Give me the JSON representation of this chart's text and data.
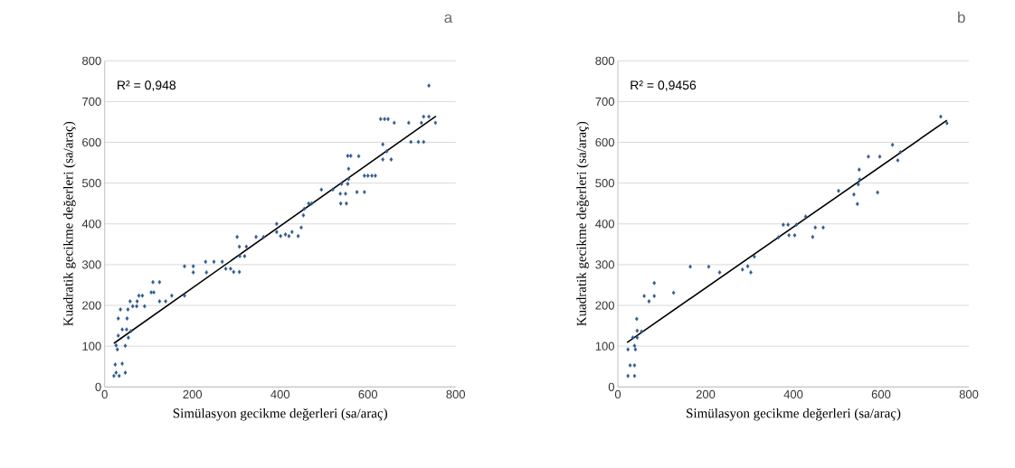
{
  "chart_data": [
    {
      "type": "scatter",
      "title": "a",
      "xlabel": "Simülasyon gecikme değerleri (sa/araç)",
      "ylabel": "Kuadratik gecikme değerleri (sa/araç)",
      "xlim": [
        0,
        800
      ],
      "ylim": [
        0,
        800
      ],
      "xticks": [
        0,
        200,
        400,
        600,
        800
      ],
      "yticks": [
        0,
        100,
        200,
        300,
        400,
        500,
        600,
        700,
        800
      ],
      "grid": "y",
      "marker": "diamond",
      "annotations": [
        "R² = 0,948"
      ],
      "series": [
        {
          "color": "#2f5b8f",
          "x": [
            21,
            33,
            47,
            26,
            24,
            40,
            29,
            47,
            26,
            31,
            40,
            50,
            54,
            60,
            31,
            51,
            36,
            53,
            64,
            73,
            58,
            74,
            78,
            86,
            91,
            106,
            112,
            110,
            125,
            125,
            139,
            153,
            182,
            182,
            202,
            202,
            232,
            230,
            249,
            268,
            276,
            287,
            294,
            307,
            302,
            307,
            323,
            308,
            319,
            345,
            362,
            392,
            392,
            401,
            412,
            420,
            427,
            441,
            448,
            453,
            455,
            465,
            472,
            494,
            520,
            537,
            549,
            538,
            551,
            540,
            554,
            556,
            556,
            554,
            561,
            579,
            575,
            592,
            592,
            600,
            609,
            617,
            629,
            638,
            646,
            660,
            634,
            634,
            643,
            653,
            693,
            698,
            715,
            727,
            722,
            727,
            739,
            739,
            754
          ],
          "values": [
            27,
            27,
            35,
            35,
            55,
            57,
            92,
            101,
            102,
            126,
            141,
            141,
            121,
            137,
            168,
            168,
            190,
            190,
            198,
            198,
            210,
            210,
            224,
            224,
            198,
            232,
            232,
            257,
            257,
            210,
            210,
            224,
            224,
            296,
            296,
            281,
            281,
            307,
            307,
            307,
            290,
            290,
            282,
            282,
            368,
            344,
            344,
            321,
            321,
            368,
            368,
            400,
            380,
            370,
            374,
            370,
            380,
            370,
            391,
            421,
            437,
            450,
            450,
            484,
            484,
            474,
            474,
            450,
            450,
            498,
            498,
            510,
            535,
            567,
            567,
            566,
            478,
            478,
            518,
            518,
            518,
            518,
            657,
            657,
            657,
            648,
            595,
            558,
            578,
            558,
            648,
            601,
            601,
            601,
            648,
            663,
            663,
            739,
            648
          ]
        },
        {
          "type": "line",
          "marker": "none",
          "color": "#000000",
          "x": [
            21,
            755
          ],
          "values": [
            107,
            664
          ]
        }
      ]
    },
    {
      "type": "scatter",
      "title": "b",
      "xlabel": "Simülasyon gecikme değerleri (sa/araç)",
      "ylabel": "Kuadratik gecikme değerleri (sa/araç)",
      "xlim": [
        0,
        800
      ],
      "ylim": [
        0,
        800
      ],
      "xticks": [
        0,
        200,
        400,
        600,
        800
      ],
      "yticks": [
        0,
        100,
        200,
        300,
        400,
        500,
        600,
        700,
        800
      ],
      "grid": "y",
      "marker": "diamond",
      "annotations": [
        "R² = 0,9456"
      ],
      "series": [
        {
          "color": "#2f5b8f",
          "x": [
            23,
            38,
            28,
            38,
            23,
            40,
            38,
            34,
            44,
            44,
            54,
            43,
            60,
            71,
            83,
            83,
            127,
            165,
            207,
            232,
            284,
            296,
            303,
            311,
            366,
            377,
            388,
            390,
            403,
            407,
            428,
            444,
            450,
            468,
            503,
            538,
            546,
            548,
            551,
            550,
            571,
            592,
            597,
            626,
            638,
            644,
            736,
            750
          ],
          "values": [
            27,
            27,
            53,
            53,
            92,
            92,
            101,
            121,
            121,
            138,
            136,
            167,
            223,
            210,
            223,
            255,
            231,
            295,
            295,
            281,
            288,
            296,
            281,
            320,
            367,
            398,
            398,
            372,
            372,
            398,
            418,
            368,
            391,
            391,
            481,
            472,
            449,
            497,
            509,
            533,
            565,
            477,
            565,
            594,
            556,
            576,
            663,
            647
          ]
        },
        {
          "type": "line",
          "marker": "none",
          "color": "#000000",
          "x": [
            21,
            750
          ],
          "values": [
            109,
            654
          ]
        }
      ]
    }
  ]
}
